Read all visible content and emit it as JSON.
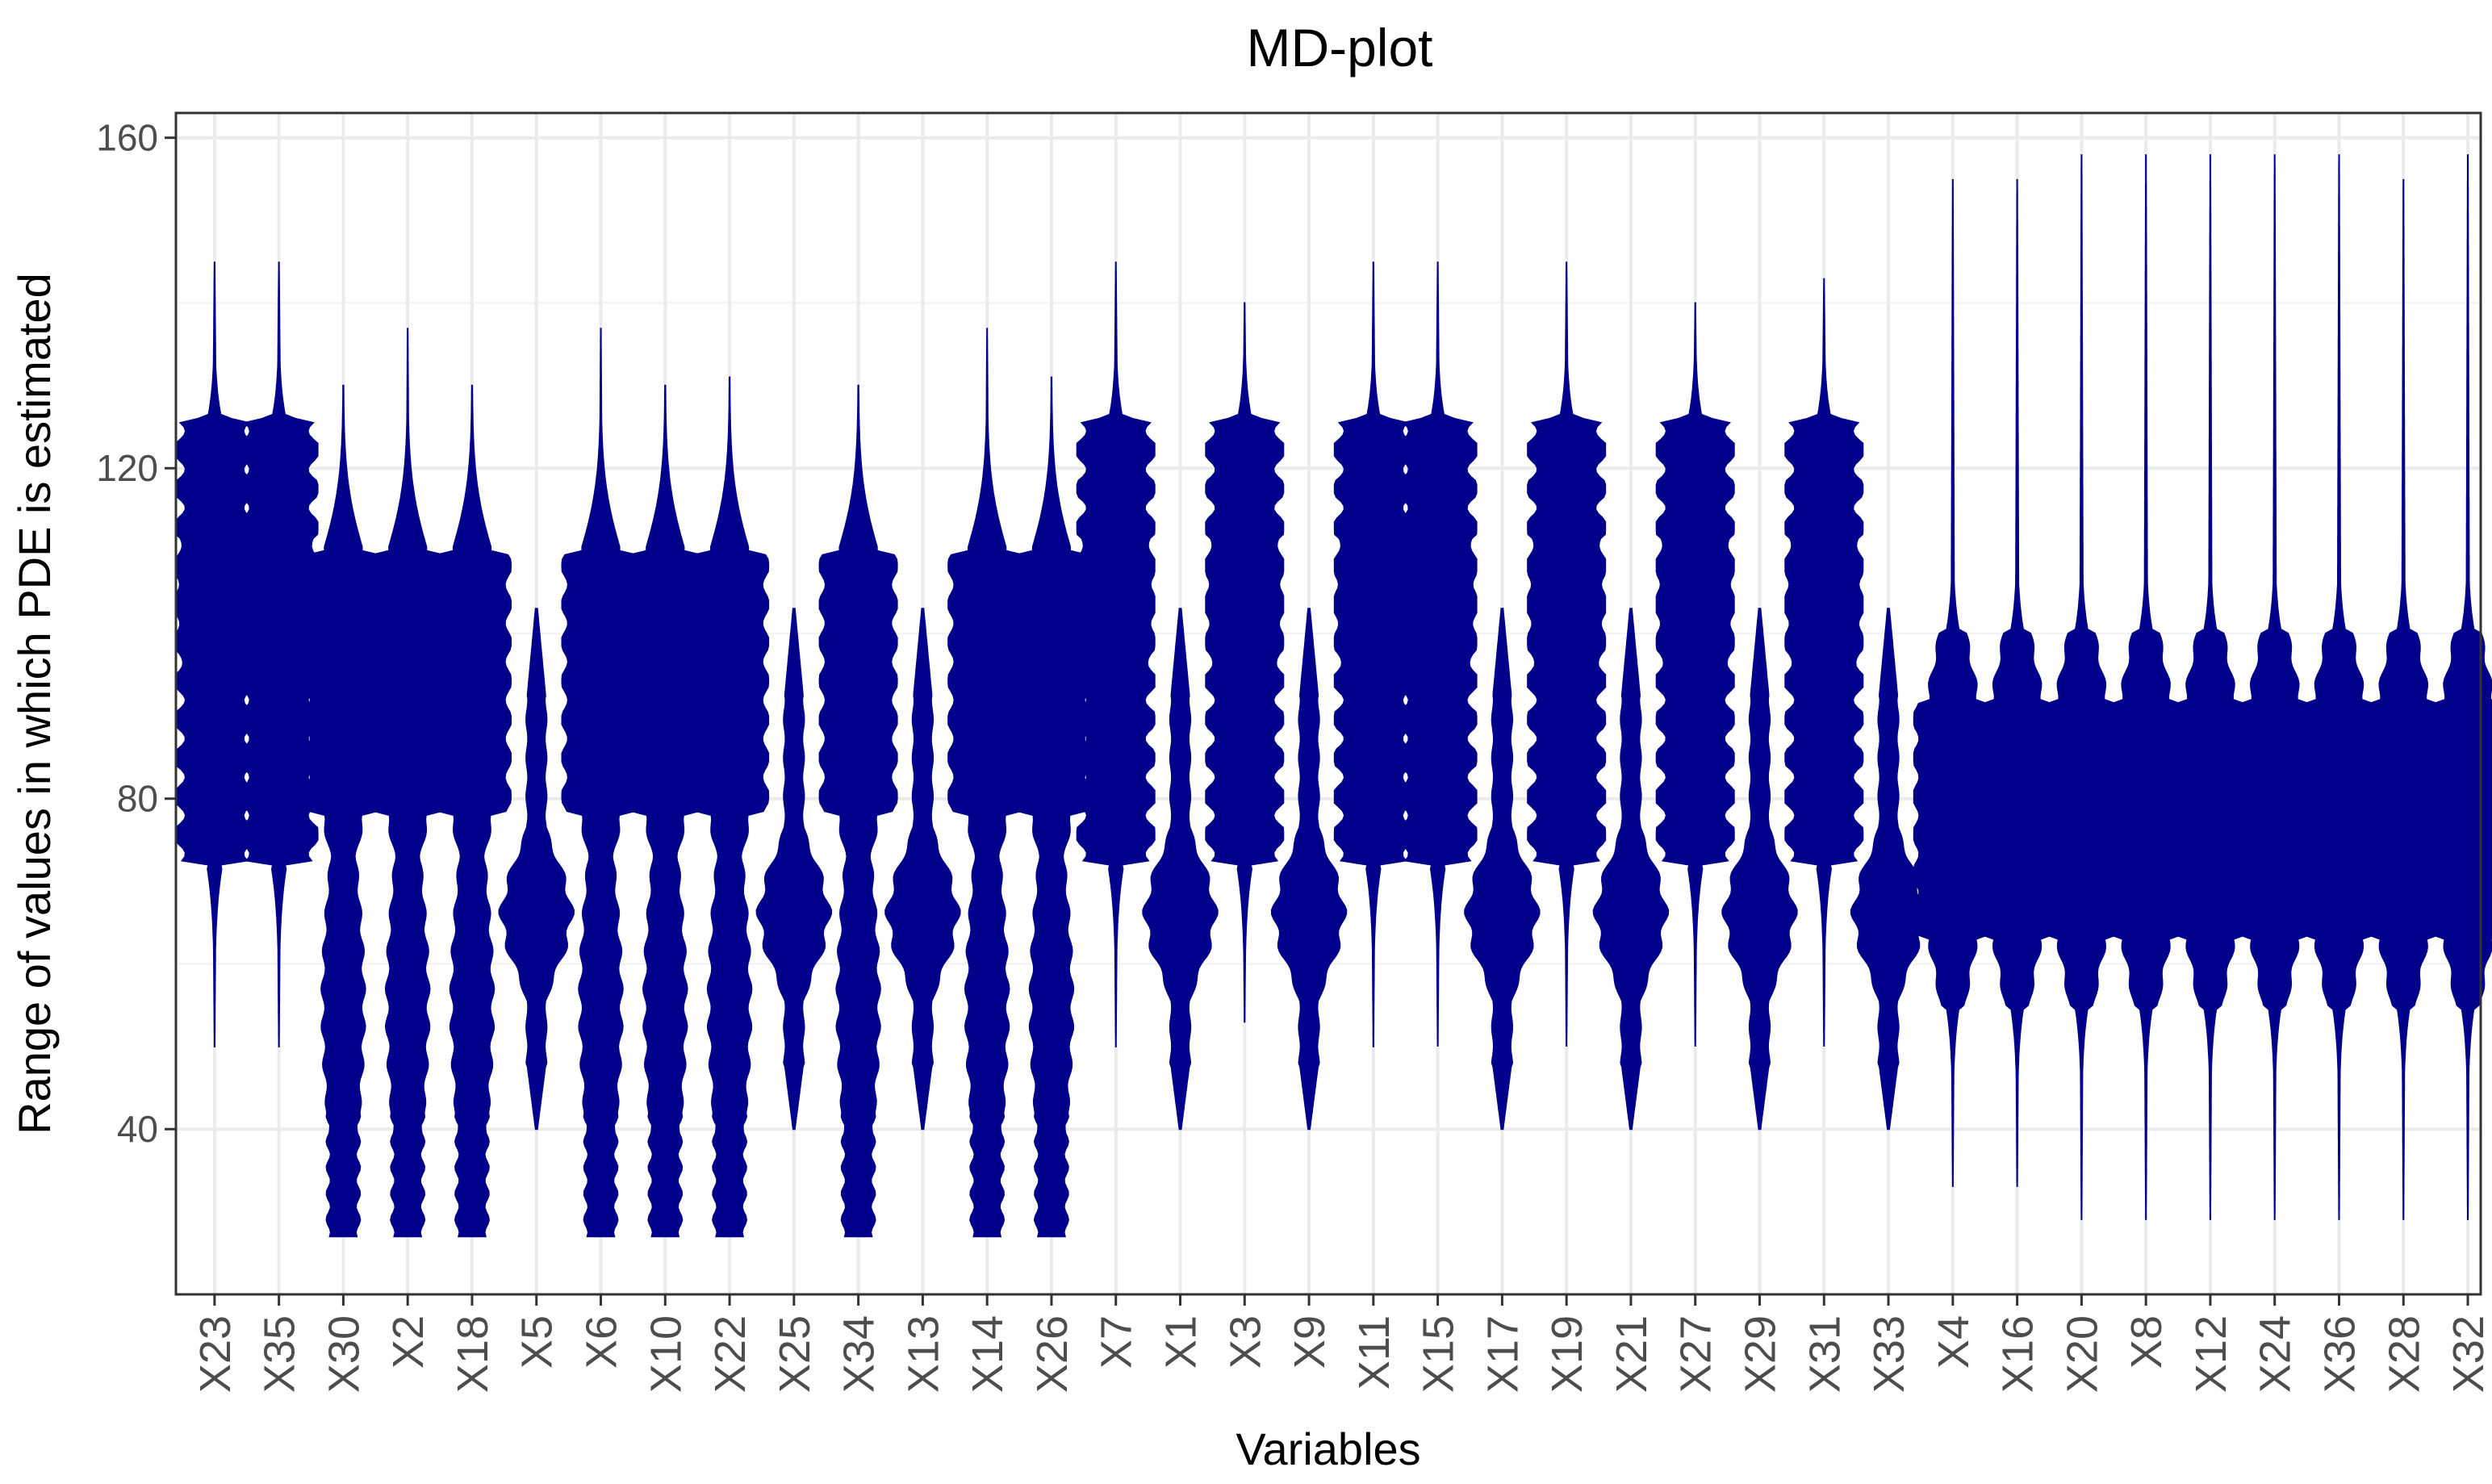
{
  "chart_data": {
    "type": "violin",
    "title": "MD-plot",
    "xlabel": "Variables",
    "ylabel": "Range of values in which PDE is estimated",
    "ylim": [
      20,
      163
    ],
    "y_ticks": [
      40,
      80,
      120,
      160
    ],
    "y_tick_labels": [
      "40",
      "80",
      "120",
      "160"
    ],
    "grid": true,
    "fill_color": "#00008B",
    "categories": [
      "X23",
      "X35",
      "X30",
      "X2",
      "X18",
      "X5",
      "X6",
      "X10",
      "X22",
      "X25",
      "X34",
      "X13",
      "X14",
      "X26",
      "X7",
      "X1",
      "X3",
      "X9",
      "X11",
      "X15",
      "X17",
      "X19",
      "X21",
      "X27",
      "X29",
      "X31",
      "X33",
      "X4",
      "X16",
      "X20",
      "X8",
      "X12",
      "X24",
      "X36",
      "X28",
      "X32"
    ],
    "violins": [
      {
        "name": "X23",
        "shape": "A",
        "min": 50,
        "max": 145
      },
      {
        "name": "X35",
        "shape": "A",
        "min": 50,
        "max": 145
      },
      {
        "name": "X30",
        "shape": "B",
        "min": 27,
        "max": 130
      },
      {
        "name": "X2",
        "shape": "B",
        "min": 27,
        "max": 137
      },
      {
        "name": "X18",
        "shape": "B",
        "min": 27,
        "max": 130
      },
      {
        "name": "X5",
        "shape": "C",
        "min": 40,
        "max": 103
      },
      {
        "name": "X6",
        "shape": "B",
        "min": 27,
        "max": 137
      },
      {
        "name": "X10",
        "shape": "B",
        "min": 27,
        "max": 130
      },
      {
        "name": "X22",
        "shape": "B",
        "min": 27,
        "max": 131
      },
      {
        "name": "X25",
        "shape": "C",
        "min": 40,
        "max": 103
      },
      {
        "name": "X34",
        "shape": "B",
        "min": 27,
        "max": 130
      },
      {
        "name": "X13",
        "shape": "C",
        "min": 40,
        "max": 103
      },
      {
        "name": "X14",
        "shape": "B",
        "min": 27,
        "max": 137
      },
      {
        "name": "X26",
        "shape": "B",
        "min": 27,
        "max": 131
      },
      {
        "name": "X7",
        "shape": "A",
        "min": 50,
        "max": 145
      },
      {
        "name": "X1",
        "shape": "C",
        "min": 40,
        "max": 103
      },
      {
        "name": "X3",
        "shape": "A",
        "min": 53,
        "max": 140
      },
      {
        "name": "X9",
        "shape": "C",
        "min": 40,
        "max": 103
      },
      {
        "name": "X11",
        "shape": "A",
        "min": 50,
        "max": 145
      },
      {
        "name": "X15",
        "shape": "A",
        "min": 50,
        "max": 145
      },
      {
        "name": "X17",
        "shape": "C",
        "min": 40,
        "max": 103
      },
      {
        "name": "X19",
        "shape": "A",
        "min": 50,
        "max": 145
      },
      {
        "name": "X21",
        "shape": "C",
        "min": 40,
        "max": 103
      },
      {
        "name": "X27",
        "shape": "A",
        "min": 50,
        "max": 140
      },
      {
        "name": "X29",
        "shape": "C",
        "min": 40,
        "max": 103
      },
      {
        "name": "X31",
        "shape": "A",
        "min": 50,
        "max": 143
      },
      {
        "name": "X33",
        "shape": "C",
        "min": 40,
        "max": 103
      },
      {
        "name": "X4",
        "shape": "D",
        "min": 33,
        "max": 155
      },
      {
        "name": "X16",
        "shape": "D",
        "min": 33,
        "max": 155
      },
      {
        "name": "X20",
        "shape": "D",
        "min": 29,
        "max": 158
      },
      {
        "name": "X8",
        "shape": "D",
        "min": 29,
        "max": 158
      },
      {
        "name": "X12",
        "shape": "D",
        "min": 29,
        "max": 158
      },
      {
        "name": "X24",
        "shape": "D",
        "min": 29,
        "max": 158
      },
      {
        "name": "X36",
        "shape": "D",
        "min": 29,
        "max": 158
      },
      {
        "name": "X28",
        "shape": "D",
        "min": 29,
        "max": 155
      },
      {
        "name": "X32",
        "shape": "D",
        "min": 29,
        "max": 158
      }
    ]
  }
}
